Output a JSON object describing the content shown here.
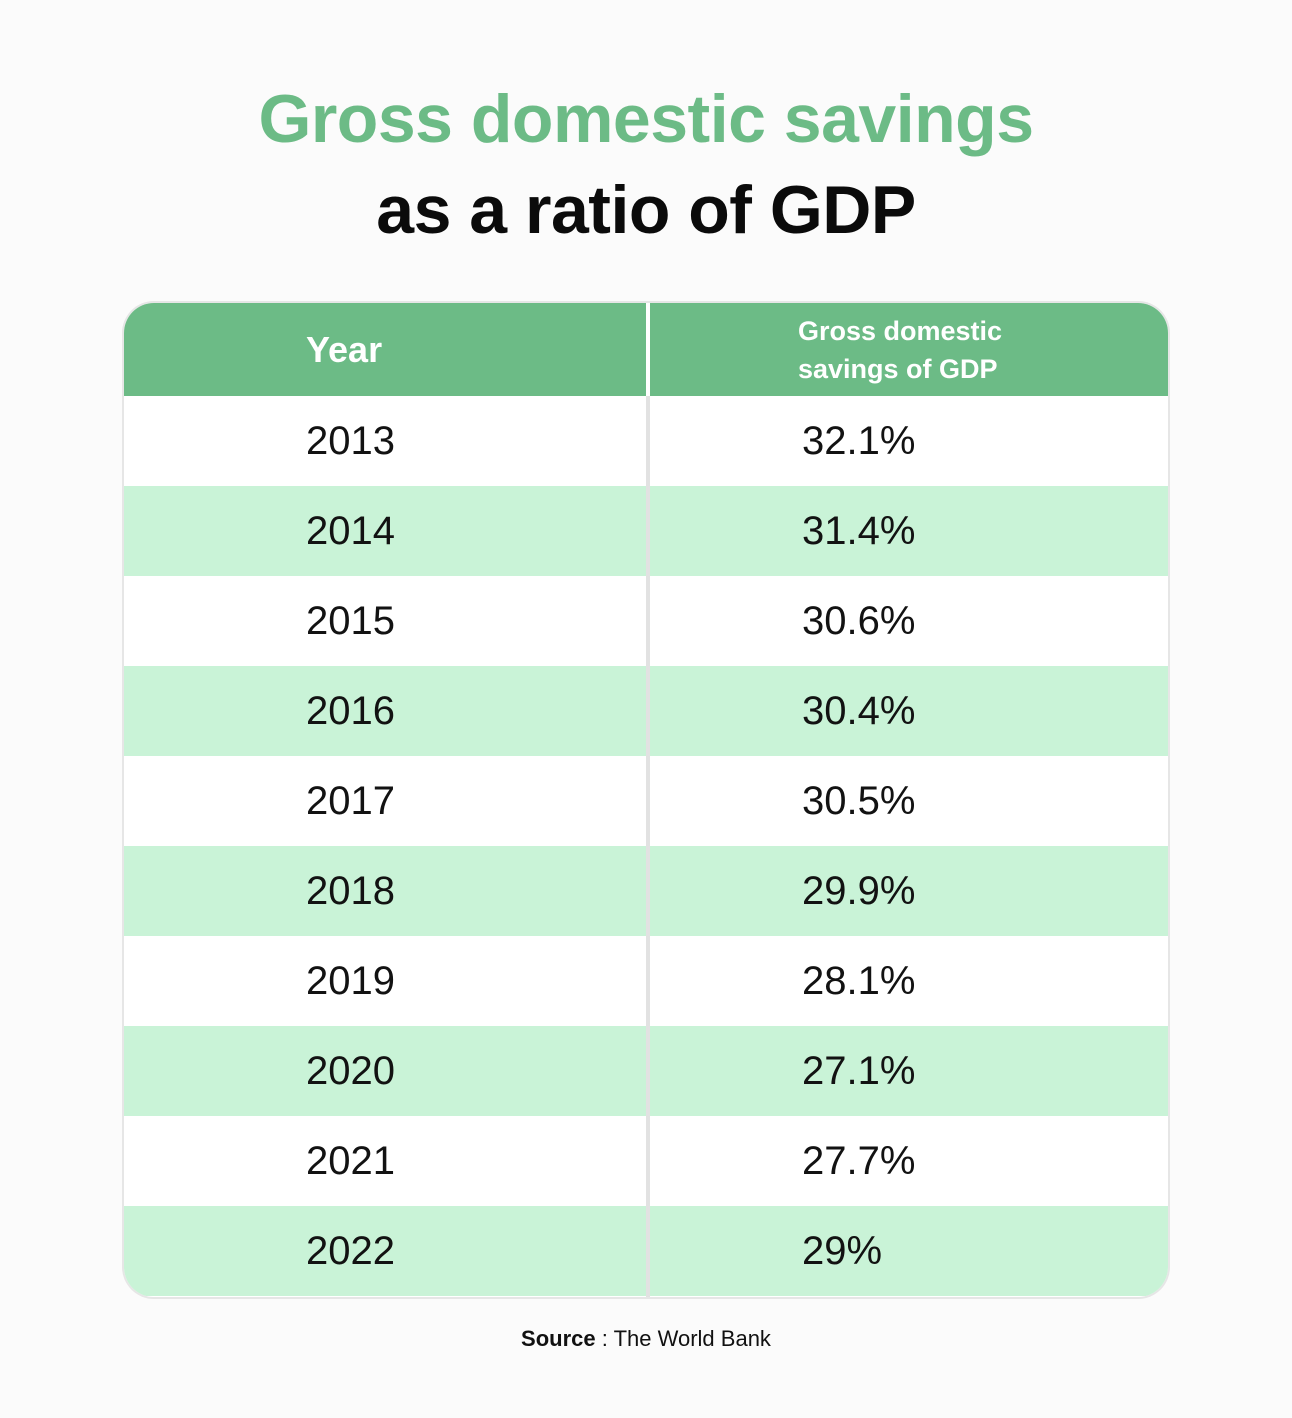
{
  "title": {
    "line1": "Gross domestic savings",
    "line2": "as a ratio of GDP"
  },
  "colors": {
    "accent": "#6cbb86",
    "row_alt": "#c9f3d7",
    "text": "#121212"
  },
  "chart_data": {
    "type": "table",
    "title": "Gross domestic savings as a ratio of GDP",
    "columns": [
      "Year",
      "Gross domestic savings of GDP"
    ],
    "categories": [
      "2013",
      "2014",
      "2015",
      "2016",
      "2017",
      "2018",
      "2019",
      "2020",
      "2021",
      "2022"
    ],
    "values": [
      32.1,
      31.4,
      30.6,
      30.4,
      30.5,
      29.9,
      28.1,
      27.1,
      27.7,
      29
    ],
    "rows": [
      {
        "year": "2013",
        "value": "32.1%"
      },
      {
        "year": "2014",
        "value": "31.4%"
      },
      {
        "year": "2015",
        "value": "30.6%"
      },
      {
        "year": "2016",
        "value": "30.4%"
      },
      {
        "year": "2017",
        "value": "30.5%"
      },
      {
        "year": "2018",
        "value": "29.9%"
      },
      {
        "year": "2019",
        "value": "28.1%"
      },
      {
        "year": "2020",
        "value": "27.1%"
      },
      {
        "year": "2021",
        "value": "27.7%"
      },
      {
        "year": "2022",
        "value": "29%"
      }
    ]
  },
  "source": {
    "label": "Source",
    "separator": " : ",
    "text": "The World Bank"
  }
}
